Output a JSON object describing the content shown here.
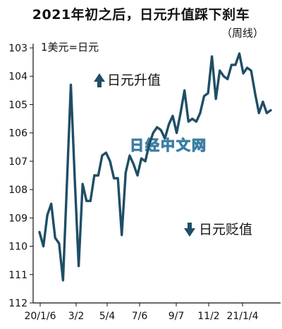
{
  "title": "2021年初之后，日元升值踩下刹车",
  "subtitle": "（周线）",
  "unit_label": "1美元=日元",
  "annotation_up": "日元升值",
  "annotation_down": "日元贬值",
  "watermark": "日经中文网",
  "colors": {
    "line": "#1f4e66",
    "arrow": "#1f4e66",
    "axis": "#111111",
    "watermark": "#3d7fa3"
  },
  "chart_data": {
    "type": "line",
    "title": "2021年初之后，日元升值踩下刹车",
    "subtitle": "（周线）",
    "ylabel": "1美元=日元",
    "y_inverted": true,
    "ylim": [
      103,
      112
    ],
    "yticks": [
      103,
      104,
      105,
      106,
      107,
      108,
      109,
      110,
      111,
      112
    ],
    "xtick_labels": [
      "20/1/6",
      "3/2",
      "5/4",
      "7/6",
      "9/7",
      "11/2",
      "21/1/4"
    ],
    "grid": false,
    "legend": "none",
    "series": [
      {
        "values": [
          109.5,
          110.0,
          108.9,
          108.5,
          109.7,
          109.9,
          111.2,
          107.8,
          104.3,
          107.6,
          110.7,
          107.8,
          108.4,
          108.4,
          107.5,
          107.5,
          106.8,
          106.7,
          107.0,
          107.6,
          107.6,
          109.6,
          107.4,
          106.8,
          107.1,
          107.5,
          106.9,
          107.0,
          106.4,
          106.0,
          105.8,
          105.9,
          106.2,
          105.7,
          105.4,
          106.0,
          105.3,
          104.5,
          105.6,
          105.5,
          105.6,
          105.3,
          104.7,
          104.6,
          103.3,
          104.8,
          103.8,
          104.0,
          104.1,
          103.6,
          103.6,
          103.2,
          103.9,
          103.7,
          103.8,
          104.6,
          105.3,
          104.9,
          105.3,
          105.2
        ]
      }
    ]
  }
}
